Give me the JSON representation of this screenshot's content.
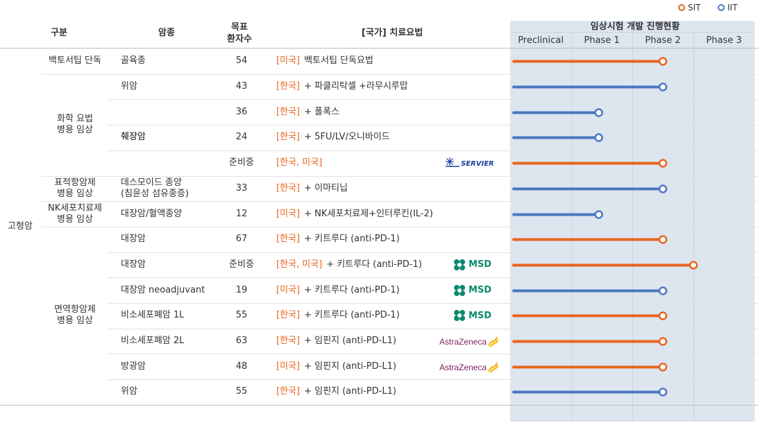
{
  "legend": {
    "sit": {
      "label": "SIT",
      "color": "#e8651f"
    },
    "iit": {
      "label": "IIT",
      "color": "#4a78c0"
    }
  },
  "header": {
    "category": "구분",
    "cancer": "암종",
    "target_line1": "목표",
    "target_line2": "환자수",
    "therapy": "[국가] 치료요법",
    "progress": "임상시험 개발 진행현황"
  },
  "chart_data": {
    "type": "bar",
    "title": "",
    "categories": [
      "Preclinical",
      "Phase 1",
      "Phase 2",
      "Phase 3"
    ],
    "xlabel": "",
    "ylabel": "",
    "xlim": [
      0,
      4
    ],
    "grid": true,
    "legend_position": "top-right",
    "series": [
      {
        "name": "SIT",
        "color": "#e8651f"
      },
      {
        "name": "IIT",
        "color": "#4a78c0"
      }
    ],
    "rows": [
      {
        "cancer": "골육종",
        "patients": "54",
        "country": "[미국]",
        "therapy": "백토서팁 단독요법",
        "type": "SIT",
        "progress": 2.5
      },
      {
        "cancer": "위암",
        "patients": "43",
        "country": "[한국]",
        "therapy": "+ 파클리탁셀 +라무시루맙",
        "type": "IIT",
        "progress": 2.5
      },
      {
        "cancer": "",
        "patients": "36",
        "country": "[한국]",
        "therapy": "+ 폴폭스",
        "type": "IIT",
        "progress": 1.45
      },
      {
        "cancer": "췌장암",
        "patients": "24",
        "country": "[한국]",
        "therapy": "+ 5FU/LV/오니바이드",
        "type": "IIT",
        "progress": 1.45
      },
      {
        "cancer": "",
        "patients": "준비중",
        "country": "[한국, 미국]",
        "therapy": "",
        "type": "SIT",
        "progress": 2.5,
        "logo": "servier"
      },
      {
        "cancer": "데스모이드 종양|(침윤성 섬유종증)",
        "patients": "33",
        "country": "[한국]",
        "therapy": "+ 이마티닙",
        "type": "IIT",
        "progress": 2.5
      },
      {
        "cancer": "대장암/혈액종양",
        "patients": "12",
        "country": "[미국]",
        "therapy": "+ NK세포치료제+인터루킨(IL-2)",
        "type": "IIT",
        "progress": 1.45
      },
      {
        "cancer": "대장암",
        "patients": "67",
        "country": "[한국]",
        "therapy": "+ 키트루다 (anti-PD-1)",
        "type": "SIT",
        "progress": 2.5
      },
      {
        "cancer": "대장암",
        "patients": "준비중",
        "country": "[한국, 미국]",
        "therapy": "+ 키트루다 (anti-PD-1)",
        "type": "SIT",
        "progress": 3.0,
        "logo": "msd"
      },
      {
        "cancer": "대장암 neoadjuvant",
        "patients": "19",
        "country": "[미국]",
        "therapy": "+ 키트루다 (anti-PD-1)",
        "type": "IIT",
        "progress": 2.5,
        "logo": "msd"
      },
      {
        "cancer": "비소세포폐암 1L",
        "patients": "55",
        "country": "[한국]",
        "therapy": "+ 키트루다 (anti-PD-1)",
        "type": "SIT",
        "progress": 2.5,
        "logo": "msd"
      },
      {
        "cancer": "비소세포폐암 2L",
        "patients": "63",
        "country": "[한국]",
        "therapy": "+ 임핀지 (anti-PD-L1)",
        "type": "SIT",
        "progress": 2.5,
        "logo": "astrazeneca"
      },
      {
        "cancer": "방광암",
        "patients": "48",
        "country": "[미국]",
        "therapy": "+ 임핀지 (anti-PD-L1)",
        "type": "SIT",
        "progress": 2.5,
        "logo": "astrazeneca"
      },
      {
        "cancer": "위암",
        "patients": "55",
        "country": "[한국]",
        "therapy": "+ 임핀지 (anti-PD-L1)",
        "type": "IIT",
        "progress": 2.5
      }
    ]
  },
  "groups_level1": [
    {
      "label": "고형암",
      "start": 0,
      "end": 13
    }
  ],
  "groups_level2": [
    {
      "label": "백토서팁 단독",
      "start": 0,
      "end": 0
    },
    {
      "label": "화학 요법|병용 임상",
      "start": 1,
      "end": 4
    },
    {
      "label": "표적항암제|병용 임상",
      "start": 5,
      "end": 5
    },
    {
      "label": "NK세포치료제|병용 임상",
      "start": 6,
      "end": 6
    },
    {
      "label": "면역항암제|병용 임상",
      "start": 7,
      "end": 13
    }
  ],
  "merged_cancer": [
    {
      "label": "췌장암",
      "start": 2,
      "end": 4
    }
  ],
  "logos": {
    "msd": "MSD",
    "astrazeneca": "AstraZeneca",
    "servier": "SERVIER"
  }
}
